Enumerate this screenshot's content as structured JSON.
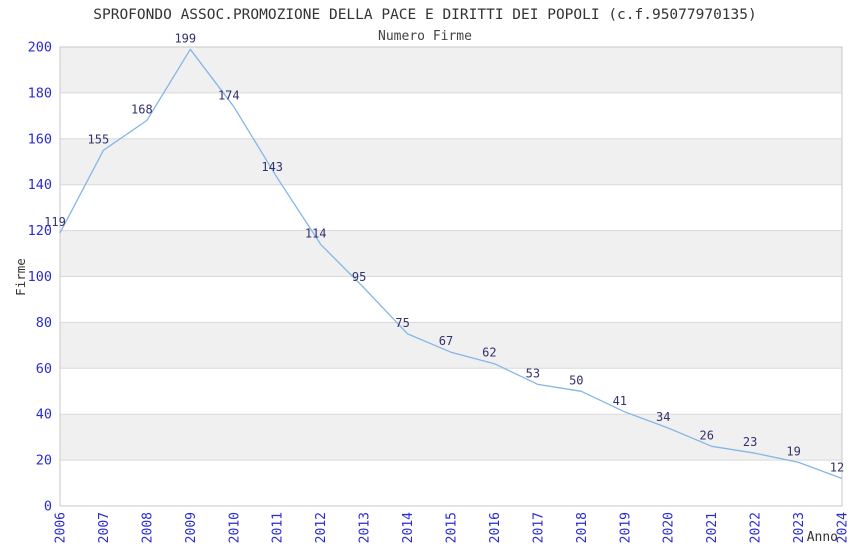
{
  "chart_data": {
    "type": "line",
    "title": "SPROFONDO ASSOC.PROMOZIONE DELLA PACE E DIRITTI DEI POPOLI (c.f.95077970135)",
    "subtitle": "Numero Firme",
    "xlabel": "Anno",
    "ylabel": "Firme",
    "x": [
      2006,
      2007,
      2008,
      2009,
      2010,
      2011,
      2012,
      2013,
      2014,
      2015,
      2016,
      2017,
      2018,
      2019,
      2020,
      2021,
      2022,
      2023,
      2024
    ],
    "values": [
      119,
      155,
      168,
      199,
      174,
      143,
      114,
      95,
      75,
      67,
      62,
      53,
      50,
      41,
      34,
      26,
      23,
      19,
      12
    ],
    "ylim": [
      0,
      200
    ],
    "ytick_step": 20,
    "grid": true,
    "legend": "none",
    "band_fill": "alternating horizontal bands, gray on odd 20-unit bands",
    "colors": {
      "line": "#85b6e7",
      "axis_tick_labels": "#2b2bd2",
      "data_labels": "#32326e",
      "band_gray": "#f0f0f0",
      "gridline": "#dadada",
      "plot_border": "#c9c9c9",
      "title": "#333333",
      "subtitle": "#444444",
      "axis_titles": "#333333",
      "background": "#ffffff"
    }
  }
}
